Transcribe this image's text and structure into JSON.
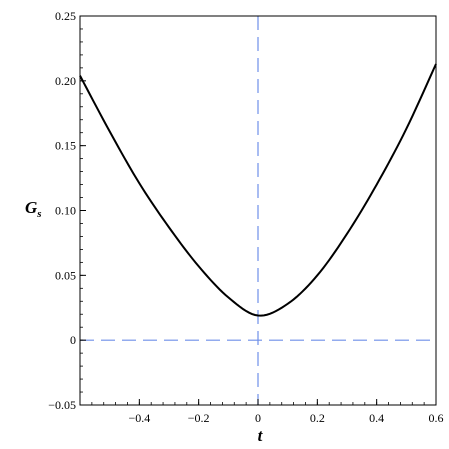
{
  "chart_data": {
    "type": "line",
    "title": "",
    "xlabel": "t",
    "ylabel_main": "G",
    "ylabel_sub": "s",
    "xlim": [
      -0.6,
      0.6
    ],
    "ylim": [
      -0.05,
      0.25
    ],
    "x_ticks": [
      -0.4,
      -0.2,
      0,
      0.2,
      0.4,
      0.6
    ],
    "x_tick_labels": [
      "−0.4",
      "−0.2",
      "0",
      "0.2",
      "0.4",
      "0.6"
    ],
    "y_ticks": [
      -0.05,
      0,
      0.05,
      0.1,
      0.15,
      0.2,
      0.25
    ],
    "y_tick_labels": [
      "−0.05",
      "0",
      "0.05",
      "0.10",
      "0.15",
      "0.20",
      "0.25"
    ],
    "series": [
      {
        "color": "#000000",
        "style": "solid",
        "x": [
          -0.6,
          -0.5,
          -0.4,
          -0.3,
          -0.2,
          -0.1,
          0,
          0.1,
          0.2,
          0.3,
          0.4,
          0.5,
          0.6
        ],
        "y": [
          0.204,
          0.161,
          0.121,
          0.087,
          0.057,
          0.033,
          0.019,
          0.028,
          0.05,
          0.082,
          0.12,
          0.163,
          0.213
        ]
      }
    ],
    "reference_lines": [
      {
        "orientation": "vertical",
        "value": 0,
        "color": "#6f8fe8",
        "style": "dashed"
      },
      {
        "orientation": "horizontal",
        "value": 0,
        "color": "#6f8fe8",
        "style": "dashed"
      }
    ],
    "grid": false,
    "legend": "none"
  }
}
